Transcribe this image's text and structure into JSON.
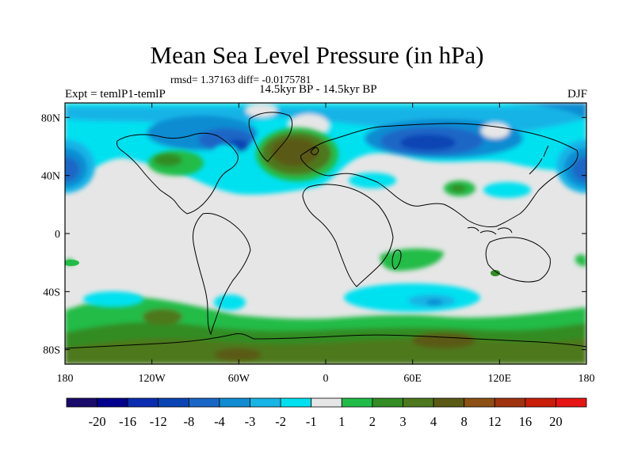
{
  "chart_data": {
    "type": "heatmap",
    "title": "Mean Sea Level Pressure (in hPa)",
    "stats_line": "rmsd= 1.37163 diff= -0.0175781",
    "subtitle": "14.5kyr BP - 14.5kyr BP",
    "left_label": "Expt = temlP1-temlP",
    "right_label": "DJF",
    "projection": "cylindrical equidistant",
    "x_ticks": [
      "180",
      "120W",
      "60W",
      "0",
      "60E",
      "120E",
      "180"
    ],
    "x_tick_values": [
      -180,
      -120,
      -60,
      0,
      60,
      120,
      180
    ],
    "y_ticks": [
      "80N",
      "40N",
      "0",
      "40S",
      "80S"
    ],
    "y_tick_values": [
      80,
      40,
      0,
      -40,
      -80
    ],
    "xlim": [
      -180,
      180
    ],
    "ylim": [
      -90,
      90
    ],
    "colorbar": {
      "levels": [
        "-20",
        "-16",
        "-12",
        "-8",
        "-4",
        "-3",
        "-2",
        "-1",
        "1",
        "2",
        "3",
        "4",
        "8",
        "12",
        "16",
        "20"
      ],
      "colors": [
        "#1a0a6b",
        "#00008c",
        "#0a2cb0",
        "#0a44b4",
        "#1a66c6",
        "#0f8cd2",
        "#17b4e6",
        "#00e1f0",
        "#e6e6e6",
        "#21bc47",
        "#338c24",
        "#4e781e",
        "#5a5a14",
        "#8c5014",
        "#a0330f",
        "#c81e0a",
        "#e61414"
      ]
    },
    "anomaly_regions": [
      {
        "name": "North Pacific low",
        "lon": -178,
        "lat": 47,
        "level": -8,
        "fill_index": 3
      },
      {
        "name": "North Atlantic high",
        "lon": -22,
        "lat": 60,
        "level": 8,
        "fill_index": 12
      },
      {
        "name": "North America trough",
        "lon": -100,
        "lat": 60,
        "level": -4,
        "fill_index": 4
      },
      {
        "name": "Siberian low",
        "lon": 60,
        "lat": 62,
        "level": -8,
        "fill_index": 3
      },
      {
        "name": "Southern Ocean high",
        "lon": 20,
        "lat": -80,
        "level": 4,
        "fill_index": 11
      },
      {
        "name": "South Indian Ocean low",
        "lon": 70,
        "lat": -46,
        "level": -2,
        "fill_index": 6
      },
      {
        "name": "Central Asia high",
        "lon": 87,
        "lat": 37,
        "level": 3,
        "fill_index": 10
      }
    ]
  }
}
